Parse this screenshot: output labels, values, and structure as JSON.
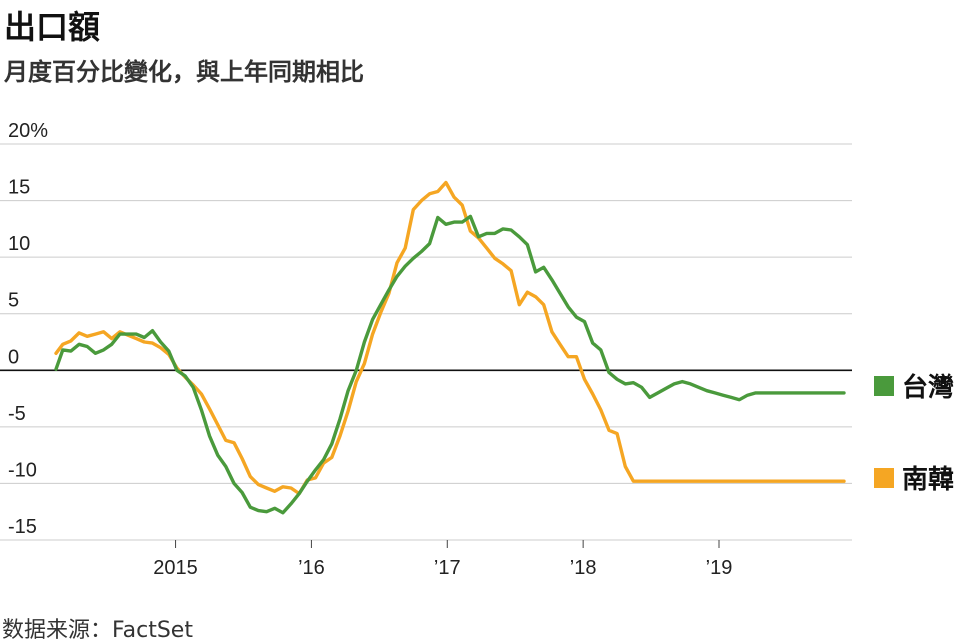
{
  "title": "出口額",
  "subtitle": "月度百分比變化，與上年同期相比",
  "source": "数据来源：FactSet",
  "chart_data": {
    "type": "line",
    "title": "出口額",
    "subtitle": "月度百分比變化，與上年同期相比",
    "xlabel": "",
    "ylabel": "",
    "ylim": [
      -15,
      20
    ],
    "xlim": [
      2014.12,
      2019.92
    ],
    "grid": true,
    "zero_line": true,
    "legend_position": "right",
    "y_ticks": [
      {
        "value": 20,
        "label": "20%"
      },
      {
        "value": 15,
        "label": "15"
      },
      {
        "value": 10,
        "label": "10"
      },
      {
        "value": 5,
        "label": "5"
      },
      {
        "value": 0,
        "label": "0"
      },
      {
        "value": -5,
        "label": "-5"
      },
      {
        "value": -10,
        "label": "-10"
      },
      {
        "value": -15,
        "label": "-15"
      }
    ],
    "x_ticks": [
      {
        "value": 2015.0,
        "label": "2015"
      },
      {
        "value": 2016.0,
        "label": "’16"
      },
      {
        "value": 2017.0,
        "label": "’17"
      },
      {
        "value": 2018.0,
        "label": "’18"
      },
      {
        "value": 2019.0,
        "label": "’19"
      }
    ],
    "x": [
      2014.12,
      2014.17,
      2014.23,
      2014.29,
      2014.35,
      2014.41,
      2014.47,
      2014.53,
      2014.59,
      2014.65,
      2014.71,
      2014.77,
      2014.83,
      2014.89,
      2014.95,
      2015.01,
      2015.07,
      2015.13,
      2015.19,
      2015.25,
      2015.31,
      2015.37,
      2015.43,
      2015.49,
      2015.55,
      2015.61,
      2015.67,
      2015.73,
      2015.79,
      2015.85,
      2015.91,
      2015.97,
      2016.03,
      2016.09,
      2016.15,
      2016.21,
      2016.27,
      2016.33,
      2016.39,
      2016.45,
      2016.51,
      2016.57,
      2016.63,
      2016.69,
      2016.75,
      2016.81,
      2016.87,
      2016.93,
      2016.99,
      2017.05,
      2017.11,
      2017.17,
      2017.23,
      2017.29,
      2017.35,
      2017.41,
      2017.47,
      2017.53,
      2017.59,
      2017.65,
      2017.71,
      2017.77,
      2017.83,
      2017.89,
      2017.95,
      2018.01,
      2018.07,
      2018.13,
      2018.19,
      2018.25,
      2018.31,
      2018.37,
      2018.43,
      2018.49,
      2018.55,
      2018.61,
      2018.67,
      2018.73,
      2018.79,
      2018.85,
      2018.91,
      2018.97,
      2019.03,
      2019.09,
      2019.15,
      2019.21,
      2019.27,
      2019.33,
      2019.39,
      2019.45,
      2019.51,
      2019.57,
      2019.63,
      2019.69,
      2019.75,
      2019.81,
      2019.87,
      2019.92
    ],
    "series": [
      {
        "name": "台灣",
        "color": "#4a9a3c",
        "values": [
          0.1,
          1.8,
          1.7,
          2.3,
          2.1,
          1.5,
          1.8,
          2.3,
          3.2,
          3.2,
          3.2,
          2.9,
          3.5,
          2.5,
          1.7,
          0.0,
          -0.5,
          -1.5,
          -3.5,
          -5.8,
          -7.5,
          -8.5,
          -10.0,
          -10.8,
          -12.1,
          -12.4,
          -12.5,
          -12.2,
          -12.6,
          -11.8,
          -10.9,
          -9.8,
          -8.8,
          -7.9,
          -6.5,
          -4.3,
          -1.8,
          0.0,
          2.5,
          4.5,
          5.8,
          7.1,
          8.3,
          9.2,
          9.9,
          10.5,
          11.2,
          13.5,
          12.9,
          13.1,
          13.1,
          13.6,
          11.8,
          12.1,
          12.1,
          12.5,
          12.4,
          11.8,
          11.1,
          8.7,
          9.1,
          8.0,
          6.8,
          5.6,
          4.7,
          4.3,
          2.4,
          1.8,
          -0.2,
          -0.8,
          -1.2,
          -1.1,
          -1.5,
          -2.4,
          -2.0,
          -1.6,
          -1.2,
          -1.0,
          -1.2,
          -1.5,
          -1.8,
          -2.0,
          -2.2,
          -2.4,
          -2.6,
          -2.2,
          -2.0,
          -2.0,
          -2.0,
          -2.0,
          -2.0,
          -2.0,
          -2.0,
          -2.0,
          -2.0,
          -2.0,
          -2.0,
          -2.0
        ]
      },
      {
        "name": "南韓",
        "color": "#f5a623",
        "values": [
          1.5,
          2.3,
          2.6,
          3.3,
          3.0,
          3.2,
          3.4,
          2.8,
          3.4,
          3.1,
          2.8,
          2.5,
          2.4,
          2.0,
          1.4,
          0.2,
          -0.6,
          -1.3,
          -2.1,
          -3.4,
          -4.8,
          -6.2,
          -6.4,
          -7.8,
          -9.4,
          -10.1,
          -10.4,
          -10.7,
          -10.3,
          -10.4,
          -10.9,
          -9.7,
          -9.5,
          -8.2,
          -7.7,
          -5.8,
          -3.6,
          -1.0,
          0.6,
          3.2,
          5.1,
          6.8,
          9.5,
          10.8,
          14.2,
          15.0,
          15.6,
          15.8,
          16.6,
          15.3,
          14.6,
          12.3,
          11.7,
          10.8,
          9.9,
          9.4,
          8.8,
          5.8,
          6.9,
          6.5,
          5.8,
          3.4,
          2.3,
          1.2,
          1.2,
          -0.8,
          -2.1,
          -3.5,
          -5.3,
          -5.6,
          -8.5,
          -9.8,
          -9.8,
          -9.8,
          -9.8,
          -9.8,
          -9.8,
          -9.8,
          -9.8,
          -9.8,
          -9.8,
          -9.8,
          -9.8,
          -9.8,
          -9.8,
          -9.8,
          -9.8,
          -9.8,
          -9.8,
          -9.8,
          -9.8,
          -9.8,
          -9.8,
          -9.8,
          -9.8,
          -9.8,
          -9.8,
          -9.8
        ]
      }
    ]
  }
}
